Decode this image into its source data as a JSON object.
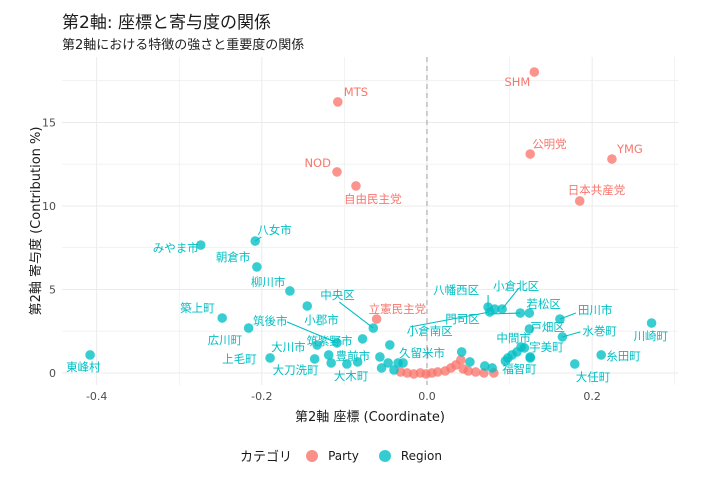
{
  "chart_data": {
    "type": "scatter",
    "title": "第2軸: 座標と寄与度の関係",
    "subtitle": "第2軸における特徴の強さと重要度の関係",
    "xlabel": "第2軸 座標 (Coordinate)",
    "ylabel": "第2軸 寄与度 (Contribution %)",
    "xlim": [
      -0.442,
      0.304
    ],
    "ylim": [
      -0.72,
      18.92
    ],
    "x_ticks": [
      -0.4,
      -0.2,
      0.0,
      0.2
    ],
    "x_tick_labels": [
      "-0.4",
      "-0.2",
      "0.0",
      "0.2"
    ],
    "y_ticks": [
      0,
      5,
      10,
      15
    ],
    "y_tick_labels": [
      "0",
      "5",
      "10",
      "15"
    ],
    "grid": true,
    "reference_line": {
      "axis": "x",
      "value": 0,
      "style": "dashed"
    },
    "legend": {
      "title": "カテゴリ",
      "position": "bottom",
      "entries": [
        "Party",
        "Region"
      ]
    },
    "colors": {
      "Party": "#F8766D",
      "Region": "#00BFC4"
    },
    "series": [
      {
        "name": "Party",
        "points": [
          {
            "x": -0.108,
            "y": 16.23,
            "label": "MTS"
          },
          {
            "x": 0.13,
            "y": 18.02,
            "label": "SHM"
          },
          {
            "x": -0.109,
            "y": 12.04,
            "label": "NOD"
          },
          {
            "x": -0.086,
            "y": 11.2,
            "label": "自由民主党"
          },
          {
            "x": 0.125,
            "y": 13.11,
            "label": "公明党"
          },
          {
            "x": 0.224,
            "y": 12.81,
            "label": "YMG"
          },
          {
            "x": 0.185,
            "y": 10.3,
            "label": "日本共産党"
          },
          {
            "x": -0.061,
            "y": 3.23,
            "label": "立憲民主党"
          },
          {
            "x": -0.032,
            "y": 0.06
          },
          {
            "x": -0.024,
            "y": 0.0
          },
          {
            "x": -0.016,
            "y": -0.06
          },
          {
            "x": -0.008,
            "y": 0.0
          },
          {
            "x": -0.001,
            "y": -0.06
          },
          {
            "x": 0.006,
            "y": 0.0
          },
          {
            "x": 0.013,
            "y": 0.06
          },
          {
            "x": 0.022,
            "y": 0.12
          },
          {
            "x": 0.029,
            "y": 0.3
          },
          {
            "x": 0.035,
            "y": 0.48
          },
          {
            "x": 0.041,
            "y": 0.78
          },
          {
            "x": 0.044,
            "y": 0.24
          },
          {
            "x": 0.05,
            "y": 0.12
          },
          {
            "x": 0.059,
            "y": 0.06
          },
          {
            "x": 0.069,
            "y": 0.0
          },
          {
            "x": 0.081,
            "y": 0.0
          }
        ]
      },
      {
        "name": "Region",
        "points": [
          {
            "x": -0.408,
            "y": 1.08,
            "label": "東峰村"
          },
          {
            "x": -0.274,
            "y": 7.66,
            "label": "みやま市"
          },
          {
            "x": -0.208,
            "y": 7.9,
            "label": "八女市"
          },
          {
            "x": -0.206,
            "y": 6.35,
            "label": "朝倉市"
          },
          {
            "x": -0.166,
            "y": 4.91,
            "label": "柳川市"
          },
          {
            "x": -0.248,
            "y": 3.29,
            "label": "築上町"
          },
          {
            "x": -0.216,
            "y": 2.69,
            "label": "広川町"
          },
          {
            "x": -0.19,
            "y": 0.9,
            "label": "上毛町"
          },
          {
            "x": -0.145,
            "y": 4.01,
            "label": "小郡市"
          },
          {
            "x": -0.109,
            "y": 1.8,
            "label": "筑後市"
          },
          {
            "x": -0.065,
            "y": 2.69,
            "label": "中央区"
          },
          {
            "x": -0.078,
            "y": 2.04,
            "label": "筑紫野市"
          },
          {
            "x": 0.076,
            "y": 3.65,
            "label": "小倉南区"
          },
          {
            "x": -0.133,
            "y": 1.68,
            "label": "大川市"
          },
          {
            "x": -0.136,
            "y": 0.84,
            "label": "大刀洗町"
          },
          {
            "x": -0.084,
            "y": 0.66,
            "label": "豊前市"
          },
          {
            "x": -0.097,
            "y": 0.54,
            "label": "大木町"
          },
          {
            "x": -0.029,
            "y": 0.6,
            "label": "久留米市"
          },
          {
            "x": 0.074,
            "y": 3.95,
            "label": "八幡西区"
          },
          {
            "x": 0.091,
            "y": 3.83,
            "label": "小倉北区"
          },
          {
            "x": 0.113,
            "y": 3.59,
            "label": "門司区"
          },
          {
            "x": 0.124,
            "y": 3.59,
            "label": "若松区"
          },
          {
            "x": 0.124,
            "y": 2.63,
            "label": "戸畑区"
          },
          {
            "x": 0.161,
            "y": 3.23,
            "label": "田川市"
          },
          {
            "x": 0.164,
            "y": 2.16,
            "label": "水巻町"
          },
          {
            "x": 0.118,
            "y": 1.5,
            "label": "中間市"
          },
          {
            "x": 0.114,
            "y": 1.56,
            "label": "宇美町"
          },
          {
            "x": 0.125,
            "y": 0.9,
            "label": "福智町"
          },
          {
            "x": 0.179,
            "y": 0.54,
            "label": "大任町"
          },
          {
            "x": 0.211,
            "y": 1.08,
            "label": "糸田町"
          },
          {
            "x": 0.272,
            "y": 2.99,
            "label": "川崎町"
          },
          {
            "x": 0.082,
            "y": 3.83
          },
          {
            "x": -0.119,
            "y": 1.08
          },
          {
            "x": -0.116,
            "y": 0.6
          },
          {
            "x": -0.057,
            "y": 0.96
          },
          {
            "x": -0.047,
            "y": 0.6
          },
          {
            "x": -0.055,
            "y": 0.3
          },
          {
            "x": -0.045,
            "y": 1.68
          },
          {
            "x": -0.04,
            "y": 0.18
          },
          {
            "x": -0.035,
            "y": 0.6
          },
          {
            "x": 0.042,
            "y": 1.26
          },
          {
            "x": 0.052,
            "y": 0.66
          },
          {
            "x": 0.07,
            "y": 0.42
          },
          {
            "x": 0.079,
            "y": 0.3
          },
          {
            "x": 0.098,
            "y": 0.9
          },
          {
            "x": 0.109,
            "y": 1.26
          },
          {
            "x": 0.103,
            "y": 1.08
          },
          {
            "x": 0.095,
            "y": 0.72
          },
          {
            "x": 0.125,
            "y": 0.96
          }
        ]
      }
    ]
  }
}
